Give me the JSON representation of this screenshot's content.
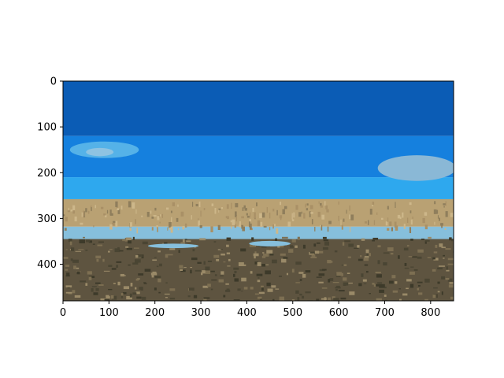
{
  "chart_data": {
    "type": "image",
    "xlim": [
      0,
      850
    ],
    "ylim": [
      480,
      0
    ],
    "y_inverted": true,
    "x_ticks": [
      0,
      100,
      200,
      300,
      400,
      500,
      600,
      700,
      800
    ],
    "y_ticks": [
      0,
      100,
      200,
      300,
      400
    ],
    "x_tick_labels": [
      "0",
      "100",
      "200",
      "300",
      "400",
      "500",
      "600",
      "700",
      "800"
    ],
    "y_tick_labels": [
      "0",
      "100",
      "200",
      "300",
      "400"
    ],
    "grid": false,
    "image_bands": [
      {
        "name": "deep-sky",
        "y0": 0,
        "y1": 120,
        "color": "#0b5cb5"
      },
      {
        "name": "mid-sky",
        "y0": 120,
        "y1": 210,
        "color": "#1580de"
      },
      {
        "name": "light-sky",
        "y0": 210,
        "y1": 258,
        "color": "#2ea8ee"
      },
      {
        "name": "reed-band",
        "y0": 258,
        "y1": 318,
        "color": "#b9a173"
      },
      {
        "name": "water-band",
        "y0": 318,
        "y1": 345,
        "color": "#86bfdc"
      },
      {
        "name": "ground",
        "y0": 345,
        "y1": 480,
        "color": "#5e5440"
      }
    ],
    "image_features": [
      {
        "name": "cloud-right",
        "cx": 770,
        "cy": 190,
        "rx": 85,
        "ry": 28,
        "color": "#8ab8d6"
      },
      {
        "name": "cloud-left",
        "cx": 90,
        "cy": 150,
        "rx": 75,
        "ry": 18,
        "color": "#55b2e8"
      },
      {
        "name": "cloud-left-white",
        "cx": 80,
        "cy": 155,
        "rx": 30,
        "ry": 9,
        "color": "#8ec3e2"
      },
      {
        "name": "puddle-1",
        "cx": 240,
        "cy": 360,
        "rx": 55,
        "ry": 5,
        "color": "#86bfdc"
      },
      {
        "name": "puddle-2",
        "cx": 450,
        "cy": 355,
        "rx": 45,
        "ry": 6,
        "color": "#86bfdc"
      }
    ]
  }
}
